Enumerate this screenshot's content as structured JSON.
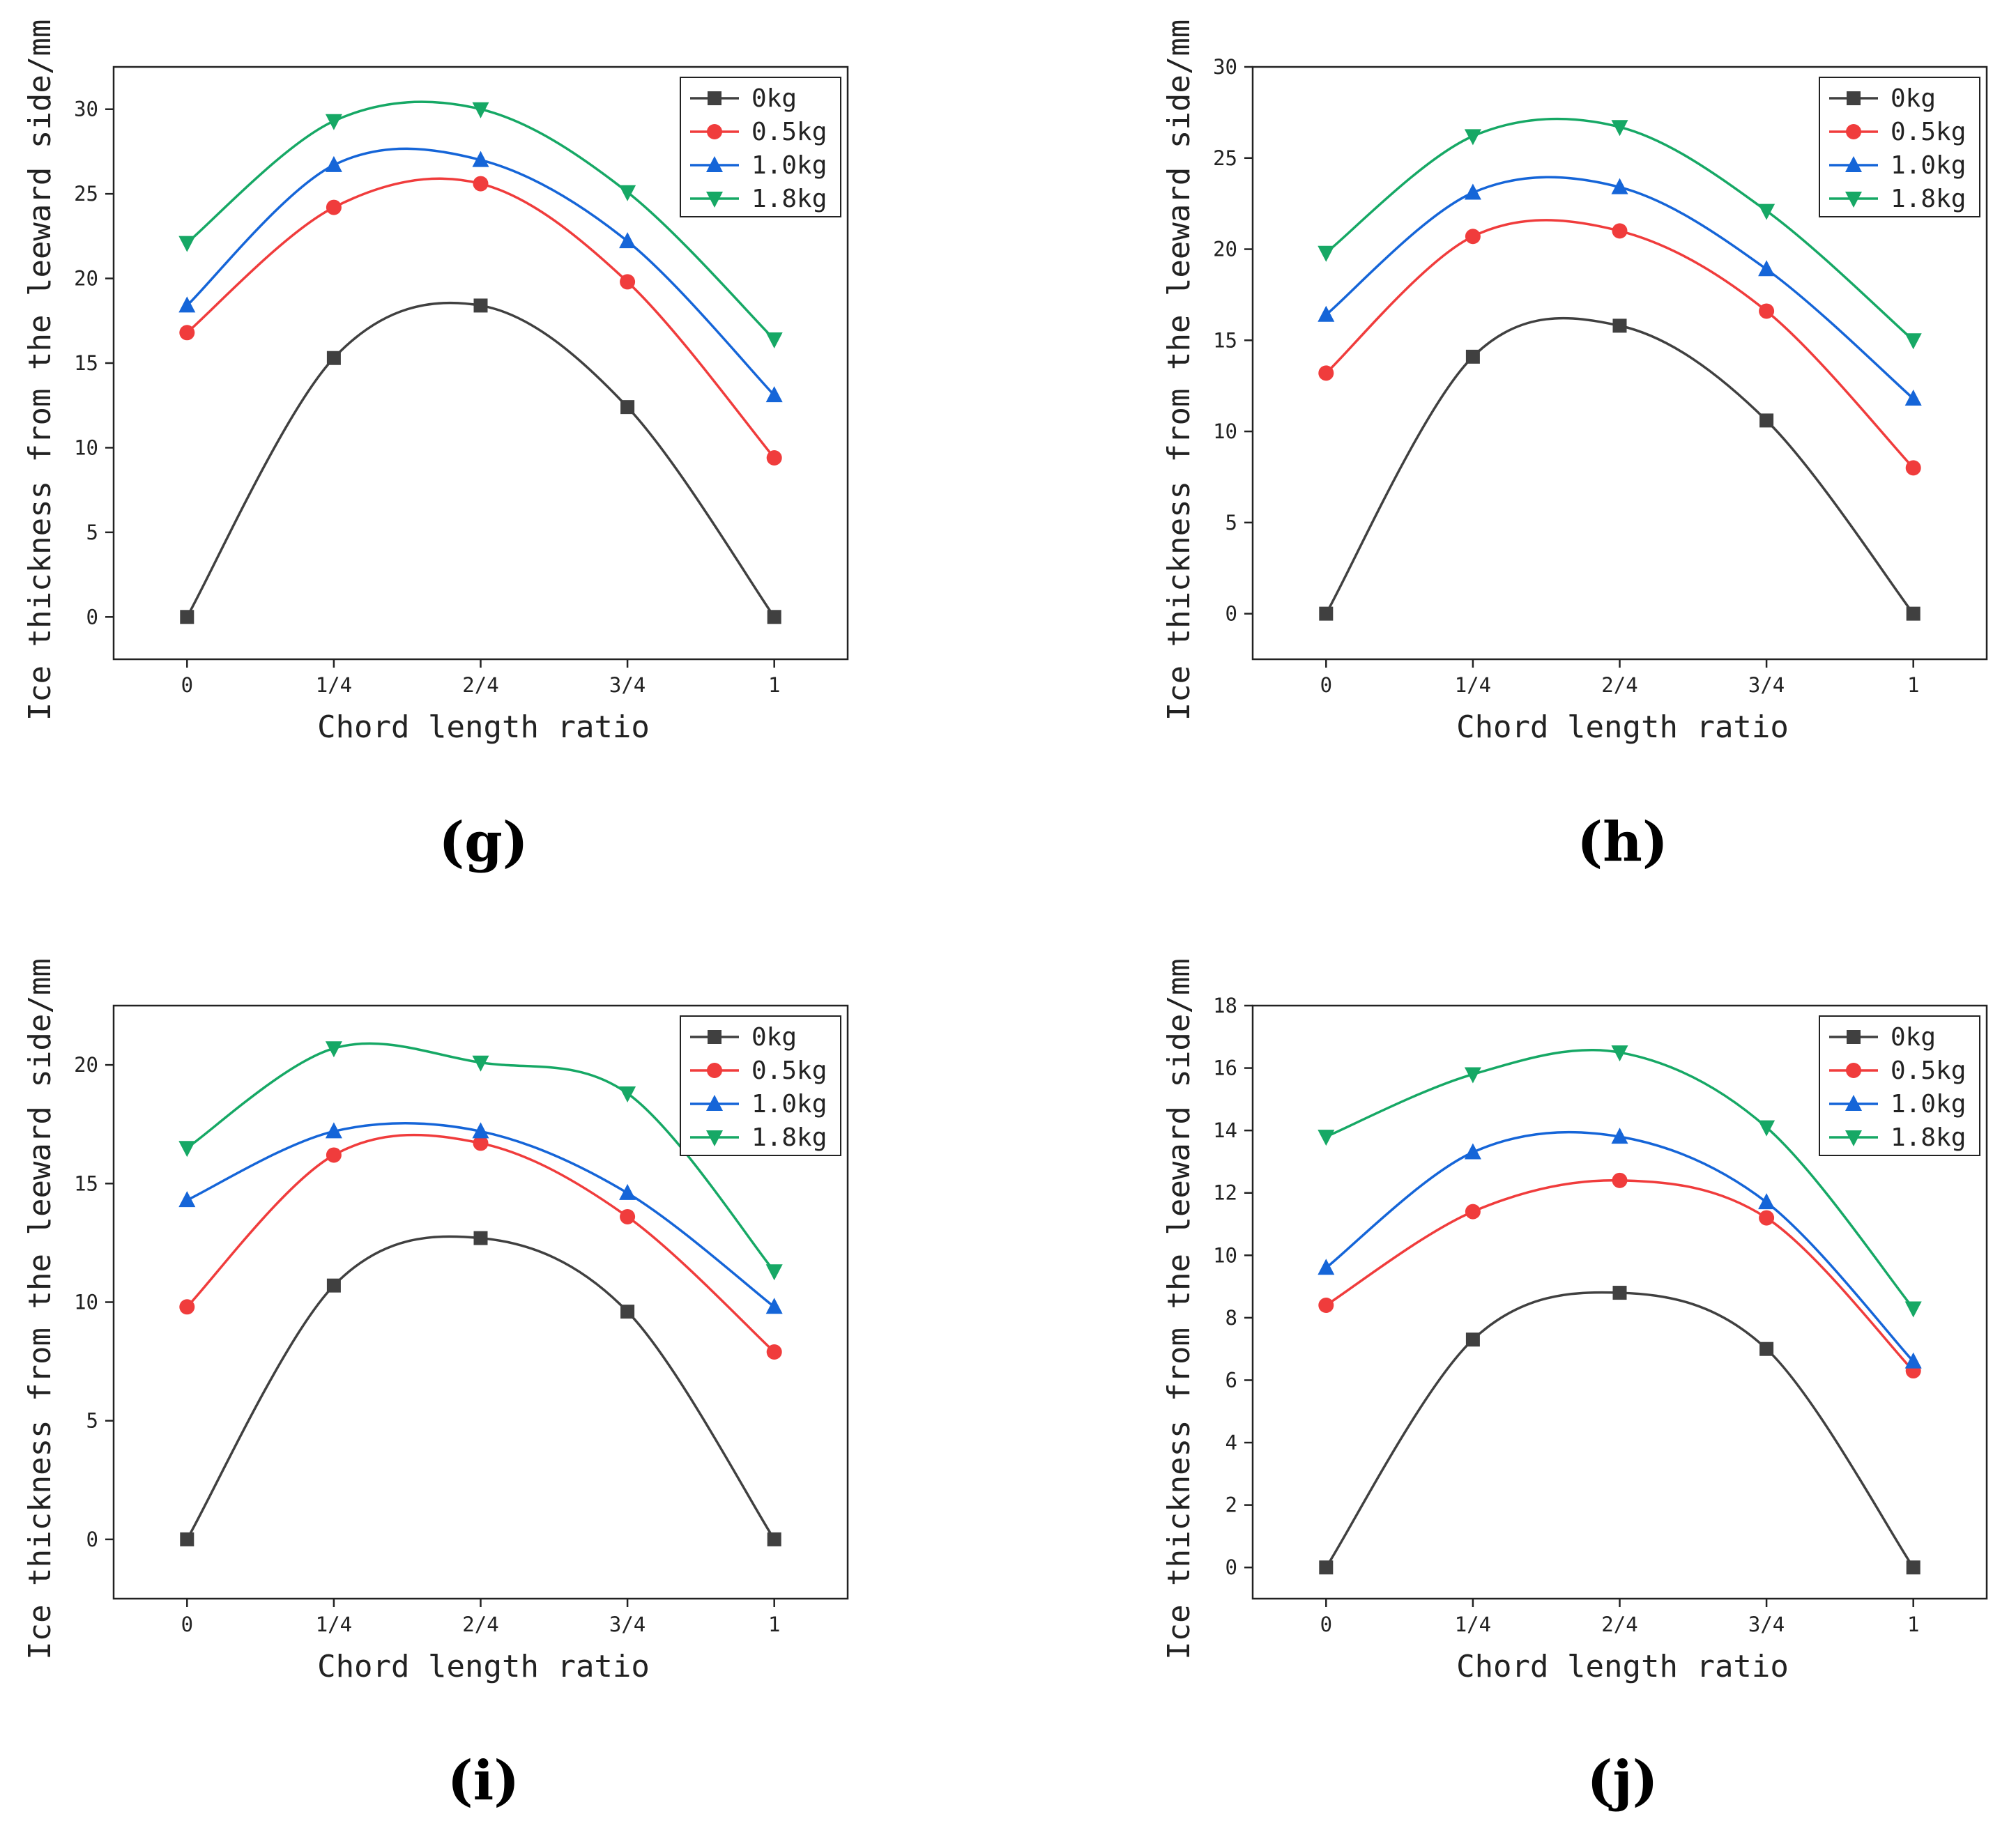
{
  "chart_data": [
    {
      "type": "line",
      "panel_label": "(g)",
      "xlabel": "Chord length ratio",
      "ylabel": "Ice thickness from the leeward side/mm",
      "categories": [
        "0",
        "1/4",
        "2/4",
        "3/4",
        "1"
      ],
      "x": [
        0,
        0.25,
        0.5,
        0.75,
        1
      ],
      "xlim": [
        -0.125,
        1.125
      ],
      "ylim": [
        -2.5,
        32.5
      ],
      "yticks": [
        0,
        5,
        10,
        15,
        20,
        25,
        30
      ],
      "legend_position": "top-right",
      "series": [
        {
          "name": "0kg",
          "marker": "square",
          "color": "#404040",
          "values": [
            0,
            15.3,
            18.4,
            12.4,
            0
          ]
        },
        {
          "name": "0.5kg",
          "marker": "circle",
          "color": "#f03c3c",
          "values": [
            16.8,
            24.2,
            25.6,
            19.8,
            9.4
          ]
        },
        {
          "name": "1.0kg",
          "marker": "triangle-up",
          "color": "#1565d8",
          "values": [
            18.4,
            26.7,
            27.0,
            22.2,
            13.1
          ]
        },
        {
          "name": "1.8kg",
          "marker": "triangle-down",
          "color": "#16a865",
          "values": [
            22.1,
            29.3,
            30.0,
            25.1,
            16.4
          ]
        }
      ]
    },
    {
      "type": "line",
      "panel_label": "(h)",
      "xlabel": "Chord length ratio",
      "ylabel": "Ice thickness from the leeward side/mm",
      "categories": [
        "0",
        "1/4",
        "2/4",
        "3/4",
        "1"
      ],
      "x": [
        0,
        0.25,
        0.5,
        0.75,
        1
      ],
      "xlim": [
        -0.125,
        1.125
      ],
      "ylim": [
        -2.5,
        30
      ],
      "yticks": [
        0,
        5,
        10,
        15,
        20,
        25,
        30
      ],
      "legend_position": "top-right",
      "series": [
        {
          "name": "0kg",
          "marker": "square",
          "color": "#404040",
          "values": [
            0,
            14.1,
            15.8,
            10.6,
            0
          ]
        },
        {
          "name": "0.5kg",
          "marker": "circle",
          "color": "#f03c3c",
          "values": [
            13.2,
            20.7,
            21.0,
            16.6,
            8.0
          ]
        },
        {
          "name": "1.0kg",
          "marker": "triangle-up",
          "color": "#1565d8",
          "values": [
            16.4,
            23.1,
            23.4,
            18.9,
            11.8
          ]
        },
        {
          "name": "1.8kg",
          "marker": "triangle-down",
          "color": "#16a865",
          "values": [
            19.8,
            26.2,
            26.7,
            22.1,
            15.0
          ]
        }
      ]
    },
    {
      "type": "line",
      "panel_label": "(i)",
      "xlabel": "Chord length ratio",
      "ylabel": "Ice thickness from the leeward side/mm",
      "categories": [
        "0",
        "1/4",
        "2/4",
        "3/4",
        "1"
      ],
      "x": [
        0,
        0.25,
        0.5,
        0.75,
        1
      ],
      "xlim": [
        -0.125,
        1.125
      ],
      "ylim": [
        -2.5,
        22.5
      ],
      "yticks": [
        0,
        5,
        10,
        15,
        20
      ],
      "legend_position": "top-right",
      "series": [
        {
          "name": "0kg",
          "marker": "square",
          "color": "#404040",
          "values": [
            0,
            10.7,
            12.7,
            9.6,
            0
          ]
        },
        {
          "name": "0.5kg",
          "marker": "circle",
          "color": "#f03c3c",
          "values": [
            9.8,
            16.2,
            16.7,
            13.6,
            7.9
          ]
        },
        {
          "name": "1.0kg",
          "marker": "triangle-up",
          "color": "#1565d8",
          "values": [
            14.3,
            17.2,
            17.2,
            14.6,
            9.8
          ]
        },
        {
          "name": "1.8kg",
          "marker": "triangle-down",
          "color": "#16a865",
          "values": [
            16.5,
            20.7,
            20.1,
            18.8,
            11.3
          ]
        }
      ]
    },
    {
      "type": "line",
      "panel_label": "(j)",
      "xlabel": "Chord length ratio",
      "ylabel": "Ice thickness from the leeward side/mm",
      "categories": [
        "0",
        "1/4",
        "2/4",
        "3/4",
        "1"
      ],
      "x": [
        0,
        0.25,
        0.5,
        0.75,
        1
      ],
      "xlim": [
        -0.125,
        1.125
      ],
      "ylim": [
        -1,
        18
      ],
      "yticks": [
        0,
        2,
        4,
        6,
        8,
        10,
        12,
        14,
        16,
        18
      ],
      "legend_position": "top-right",
      "series": [
        {
          "name": "0kg",
          "marker": "square",
          "color": "#404040",
          "values": [
            0,
            7.3,
            8.8,
            7.0,
            0
          ]
        },
        {
          "name": "0.5kg",
          "marker": "circle",
          "color": "#f03c3c",
          "values": [
            8.4,
            11.4,
            12.4,
            11.2,
            6.3
          ]
        },
        {
          "name": "1.0kg",
          "marker": "triangle-up",
          "color": "#1565d8",
          "values": [
            9.6,
            13.3,
            13.8,
            11.7,
            6.6
          ]
        },
        {
          "name": "1.8kg",
          "marker": "triangle-down",
          "color": "#16a865",
          "values": [
            13.8,
            15.8,
            16.5,
            14.1,
            8.3
          ]
        }
      ]
    }
  ]
}
